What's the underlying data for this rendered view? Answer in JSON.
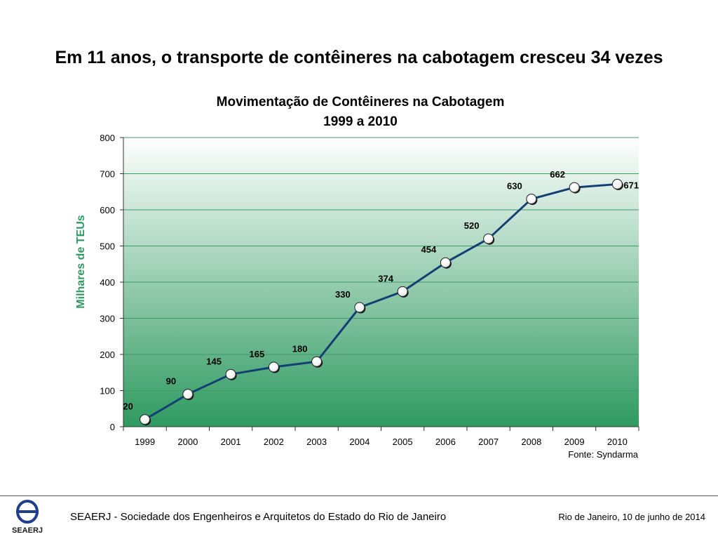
{
  "slide": {
    "headline": "Em 11 anos, o transporte de contêineres na cabotagem cresceu 34 vezes"
  },
  "chart_data": {
    "type": "line",
    "title_line1": "Movimentação de Contêineres na Cabotagem",
    "title_line2": "1999 a 2010",
    "xlabel": "",
    "ylabel": "Milhares de TEUs",
    "categories": [
      "1999",
      "2000",
      "2001",
      "2002",
      "2003",
      "2004",
      "2005",
      "2006",
      "2007",
      "2008",
      "2009",
      "2010"
    ],
    "series": [
      {
        "name": "Movimentação de Contêineres",
        "values": [
          20,
          90,
          145,
          165,
          180,
          330,
          374,
          454,
          520,
          630,
          662,
          671
        ]
      }
    ],
    "ylim": [
      0,
      800
    ],
    "yticks": [
      0,
      100,
      200,
      300,
      400,
      500,
      600,
      700,
      800
    ],
    "grid": true,
    "data_labels": true,
    "colors": {
      "line": "#133f74",
      "grid": "#3f9a6a",
      "gradient_top": "#ffffff",
      "gradient_bottom": "#2e9a60",
      "marker_fill": "#ffffff"
    },
    "source": "Fonte: Syndarma"
  },
  "footer": {
    "logo_text": "SEAERJ",
    "organization": "SEAERJ - Sociedade dos Engenheiros e Arquitetos do Estado do Rio de Janeiro",
    "date": "Rio de Janeiro, 10 de junho de 2014"
  }
}
